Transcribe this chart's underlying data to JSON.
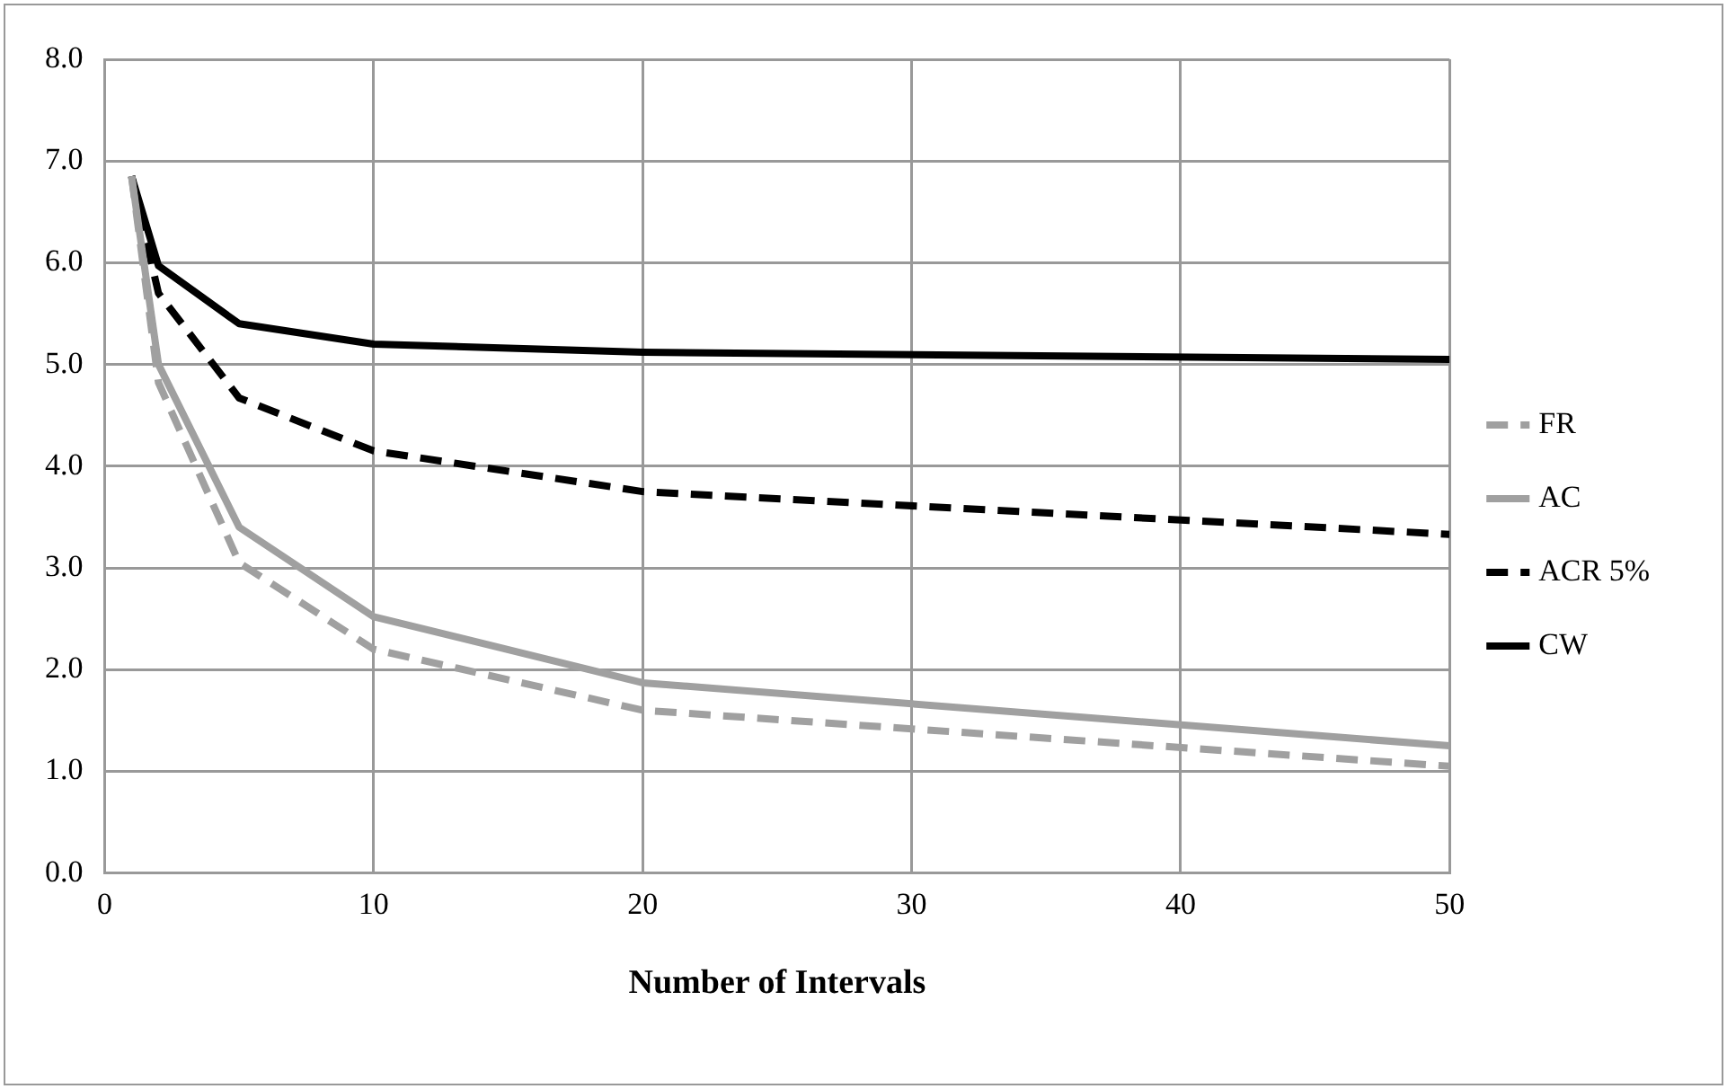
{
  "chart_data": {
    "type": "line",
    "xlabel": "Number of Intervals",
    "xlim": [
      0,
      50
    ],
    "xticks": [
      0,
      10,
      20,
      30,
      40,
      50
    ],
    "ylim": [
      0,
      8
    ],
    "yticks": [
      {
        "value": 0,
        "label": "0.0"
      },
      {
        "value": 1,
        "label": "1.0"
      },
      {
        "value": 2,
        "label": "2.0"
      },
      {
        "value": 3,
        "label": "3.0"
      },
      {
        "value": 4,
        "label": "4.0"
      },
      {
        "value": 5,
        "label": "5.0"
      },
      {
        "value": 6,
        "label": "6.0"
      },
      {
        "value": 7,
        "label": "7.0"
      },
      {
        "value": 8,
        "label": "8.0"
      }
    ],
    "x": [
      1,
      2,
      5,
      10,
      20,
      50
    ],
    "series": [
      {
        "name": "FR",
        "color": "#a0a0a0",
        "line_style": "dashed",
        "values": [
          6.85,
          4.82,
          3.05,
          2.2,
          1.6,
          1.05
        ]
      },
      {
        "name": "AC",
        "color": "#a0a0a0",
        "line_style": "solid",
        "values": [
          6.85,
          5.0,
          3.4,
          2.52,
          1.87,
          1.25
        ]
      },
      {
        "name": "ACR 5%",
        "color": "#000000",
        "line_style": "dashed",
        "values": [
          6.85,
          5.7,
          4.67,
          4.15,
          3.75,
          3.33
        ]
      },
      {
        "name": "CW",
        "color": "#000000",
        "line_style": "solid",
        "values": [
          6.85,
          5.97,
          5.4,
          5.2,
          5.12,
          5.05
        ]
      }
    ],
    "grid": true,
    "legend": "right",
    "marker": "none"
  }
}
